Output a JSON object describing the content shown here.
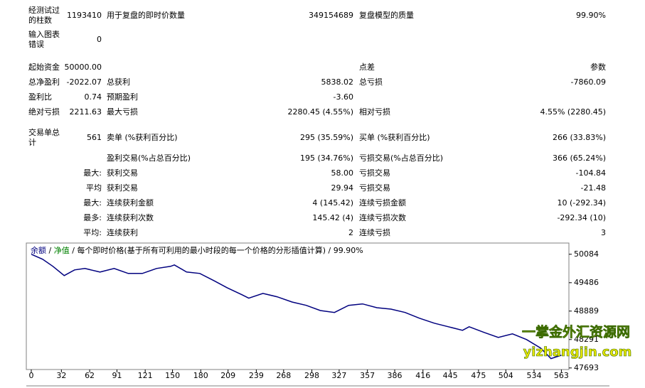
{
  "report": {
    "rows": [
      [
        "经测试过的柱数",
        "1193410",
        "用于复盘的即时价数量",
        "349154689",
        "复盘模型的质量",
        "99.90%"
      ],
      [
        "输入图表错误",
        "0",
        null,
        null,
        null,
        null
      ],
      [
        "起始资金",
        "50000.00",
        null,
        null,
        "点差",
        "参数"
      ],
      [
        "总净盈利",
        "-2022.07",
        "总获利",
        "5838.02",
        "总亏损",
        "-7860.09"
      ],
      [
        "盈利比",
        "0.74",
        "预期盈利",
        "-3.60",
        null,
        null
      ],
      [
        "绝对亏损",
        "2211.63",
        "最大亏损",
        "2280.45 (4.55%)",
        "相对亏损",
        "4.55% (2280.45)"
      ],
      [
        "交易单总计",
        "561",
        "卖单 (%获利百分比)",
        "295 (35.59%)",
        "买单 (%获利百分比)",
        "266 (33.83%)"
      ],
      [
        null,
        null,
        "盈利交易(%占总百分比)",
        "195 (34.76%)",
        "亏损交易(%占总百分比)",
        "366 (65.24%)"
      ],
      [
        null,
        "最大:",
        "获利交易",
        "58.00",
        "亏损交易",
        "-104.84"
      ],
      [
        null,
        "平均",
        "获利交易",
        "29.94",
        "亏损交易",
        "-21.48"
      ],
      [
        null,
        "最大:",
        "连续获利金额",
        "4 (145.42)",
        "连续亏损金额",
        "10 (-292.34)"
      ],
      [
        null,
        "最多:",
        "连续获利次数",
        "145.42 (4)",
        "连续亏损次数",
        "-292.34 (10)"
      ],
      [
        null,
        "平均:",
        "连续获利",
        "2",
        "连续亏损",
        "3"
      ]
    ]
  },
  "chart_data": {
    "type": "line",
    "legend": [
      {
        "text": "余额",
        "color": "#00007f"
      },
      {
        "text": "净值",
        "color": "#008000"
      },
      {
        "text": "每个即时价格(基于所有可利用的最小时段的每一个价格的分形插值计算)",
        "color": "#000000"
      },
      {
        "text": "99.90%",
        "color": "#000000"
      }
    ],
    "legend_separator": " / ",
    "x": [
      0,
      12,
      23,
      35,
      46,
      57,
      73,
      88,
      103,
      118,
      133,
      148,
      152,
      165,
      179,
      194,
      208,
      224,
      231,
      246,
      261,
      277,
      292,
      307,
      322,
      337,
      352,
      367,
      382,
      397,
      412,
      428,
      443,
      458,
      465,
      481,
      496,
      511,
      526,
      541,
      552,
      563
    ],
    "series": [
      {
        "name": "余额",
        "color": "#00007f",
        "values": [
          50084,
          49980,
          49830,
          49636,
          49755,
          49785,
          49710,
          49785,
          49680,
          49680,
          49785,
          49830,
          49860,
          49710,
          49680,
          49530,
          49380,
          49230,
          49160,
          49260,
          49190,
          49080,
          49010,
          48900,
          48860,
          49010,
          49040,
          48960,
          48930,
          48860,
          48740,
          48635,
          48560,
          48485,
          48560,
          48440,
          48335,
          48410,
          48290,
          48110,
          47890,
          47960
        ]
      }
    ],
    "xlim": [
      -3,
      571
    ],
    "ylim": [
      47660,
      50320
    ],
    "xticks": [
      0,
      32,
      62,
      91,
      121,
      150,
      180,
      209,
      239,
      268,
      298,
      327,
      357,
      386,
      416,
      445,
      475,
      504,
      534,
      563
    ],
    "yticks": [
      47693,
      48291,
      48889,
      49486,
      50084
    ],
    "grid": false,
    "watermark": [
      "一掌金外汇资源网",
      "yizhangjin.com"
    ]
  }
}
